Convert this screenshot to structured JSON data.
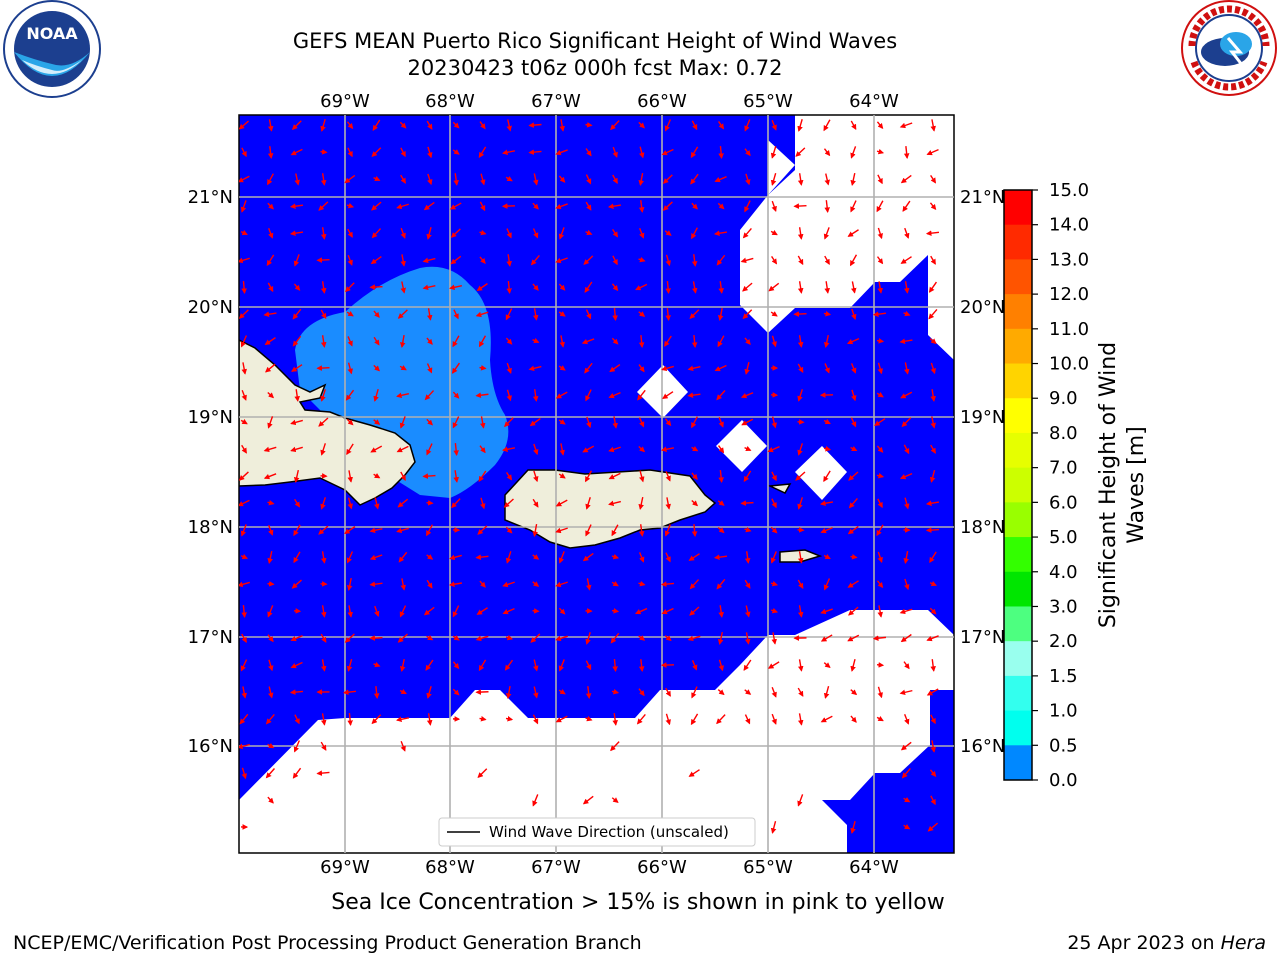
{
  "header": {
    "title_line1": "GEFS MEAN Puerto Rico Significant Height of Wind Waves",
    "title_line2": "20230423 t06z 000h fcst   Max: 0.72"
  },
  "map": {
    "lon_labels": [
      "69°W",
      "68°W",
      "67°W",
      "66°W",
      "65°W",
      "64°W"
    ],
    "lat_labels": [
      "21°N",
      "20°N",
      "19°N",
      "18°N",
      "17°N",
      "16°N"
    ],
    "legend_label": "Wind Wave Direction (unscaled)",
    "colors": {
      "low": "#0000ff",
      "mid": "#1a8cff",
      "land": "#efeedb",
      "arrow": "#ff0000",
      "grid": "#b0b0b0"
    }
  },
  "colorbar": {
    "title": "Significant Height of Wind Waves [m]",
    "ticks": [
      "15.0",
      "14.0",
      "13.0",
      "12.0",
      "11.0",
      "10.0",
      "9.0",
      "8.0",
      "7.0",
      "6.0",
      "5.0",
      "4.0",
      "3.0",
      "2.0",
      "1.5",
      "1.0",
      "0.5",
      "0.0"
    ],
    "colors": [
      "#ff0000",
      "#ff2a00",
      "#ff5400",
      "#ff8000",
      "#ffaa00",
      "#ffd400",
      "#ffff00",
      "#e6ff00",
      "#ccff00",
      "#99ff00",
      "#33ff00",
      "#00e600",
      "#4dff80",
      "#99ffee",
      "#33ffee",
      "#00ffee",
      "#0088ff",
      "#0000ff"
    ]
  },
  "ice_note": "Sea Ice Concentration > 15% is shown in pink to yellow",
  "footer": {
    "left": "NCEP/EMC/Verification Post Processing Product Generation Branch",
    "right_prefix": "25 Apr 2023 on ",
    "right_host": "Hera"
  },
  "logos": {
    "noaa_text": "NOAA",
    "nws_text": "NATIONAL WEATHER SERVICE"
  }
}
